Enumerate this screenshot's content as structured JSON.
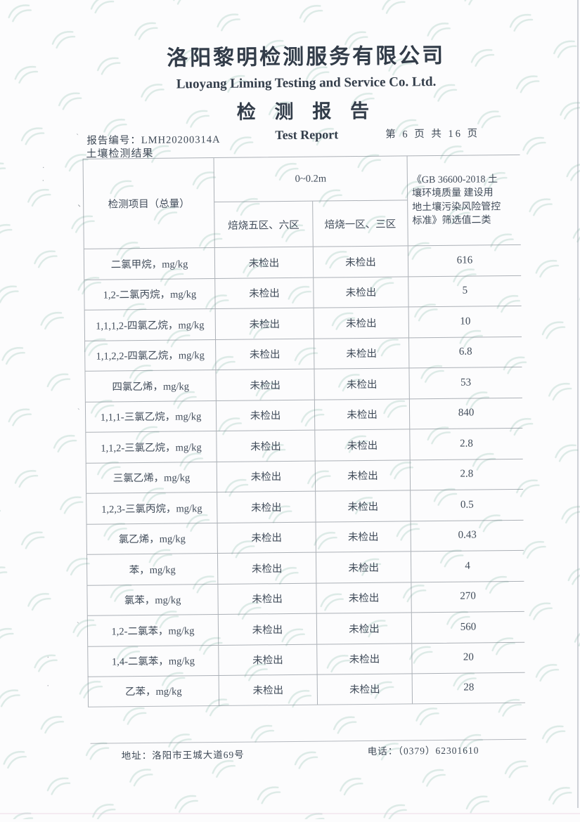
{
  "header": {
    "company_cn": "洛阳黎明检测服务有限公司",
    "company_en": "Luoyang Liming Testing and Service Co. Ltd.",
    "title_cn": "检 测 报 告",
    "title_en": "Test Report",
    "report_no_label": "报告编号：",
    "report_no": "LMH20200314A",
    "page_indicator": "第 6 页 共 16 页",
    "section_title": "土壤检测结果"
  },
  "table": {
    "item_header": "检测项目（总量）",
    "depth_header": "0~0.2m",
    "zone_headers": [
      "焙烧五区、六区",
      "焙烧一区、三区"
    ],
    "standard_header_lines": [
      "《GB 36600-2018 土",
      "壤环境质量 建设用",
      "地土壤污染风险管控",
      "标准》筛选值二类"
    ],
    "rows": [
      {
        "item": "二氯甲烷，mg/kg",
        "zone56": "未检出",
        "zone13": "未检出",
        "limit": "616"
      },
      {
        "item": "1,2-二氯丙烷，mg/kg",
        "zone56": "未检出",
        "zone13": "未检出",
        "limit": "5"
      },
      {
        "item": "1,1,1,2-四氯乙烷，mg/kg",
        "zone56": "未检出",
        "zone13": "未检出",
        "limit": "10"
      },
      {
        "item": "1,1,2,2-四氯乙烷，mg/kg",
        "zone56": "未检出",
        "zone13": "未检出",
        "limit": "6.8"
      },
      {
        "item": "四氯乙烯，mg/kg",
        "zone56": "未检出",
        "zone13": "未检出",
        "limit": "53"
      },
      {
        "item": "1,1,1-三氯乙烷，mg/kg",
        "zone56": "未检出",
        "zone13": "未检出",
        "limit": "840"
      },
      {
        "item": "1,1,2-三氯乙烷，mg/kg",
        "zone56": "未检出",
        "zone13": "未检出",
        "limit": "2.8"
      },
      {
        "item": "三氯乙烯，mg/kg",
        "zone56": "未检出",
        "zone13": "未检出",
        "limit": "2.8"
      },
      {
        "item": "1,2,3-三氯丙烷，mg/kg",
        "zone56": "未检出",
        "zone13": "未检出",
        "limit": "0.5"
      },
      {
        "item": "氯乙烯，mg/kg",
        "zone56": "未检出",
        "zone13": "未检出",
        "limit": "0.43"
      },
      {
        "item": "苯，mg/kg",
        "zone56": "未检出",
        "zone13": "未检出",
        "limit": "4"
      },
      {
        "item": "氯苯，mg/kg",
        "zone56": "未检出",
        "zone13": "未检出",
        "limit": "270"
      },
      {
        "item": "1,2-二氯苯，mg/kg",
        "zone56": "未检出",
        "zone13": "未检出",
        "limit": "560"
      },
      {
        "item": "1,4-二氯苯，mg/kg",
        "zone56": "未检出",
        "zone13": "未检出",
        "limit": "20"
      },
      {
        "item": "乙苯，mg/kg",
        "zone56": "未检出",
        "zone13": "未检出",
        "limit": "28"
      }
    ]
  },
  "footer": {
    "address": "地址：洛阳市王城大道69号",
    "phone": "电话：（0379）62301610"
  },
  "colors": {
    "ink": "#3e4956",
    "table_line": "#69737e",
    "watermark": "#bcd8d0",
    "paper": "#fcfcfd"
  }
}
